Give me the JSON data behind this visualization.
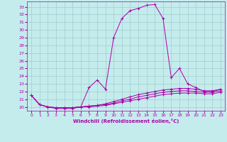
{
  "xlabel": "Windchill (Refroidissement éolien,°C)",
  "ylabel": "",
  "background_color": "#c5eced",
  "line_color": "#aa00aa",
  "grid_color": "#a0cccc",
  "xlim": [
    -0.5,
    23.5
  ],
  "ylim": [
    19.5,
    33.7
  ],
  "yticks": [
    20,
    21,
    22,
    23,
    24,
    25,
    26,
    27,
    28,
    29,
    30,
    31,
    32,
    33
  ],
  "xticks": [
    0,
    1,
    2,
    3,
    4,
    5,
    6,
    7,
    8,
    9,
    10,
    11,
    12,
    13,
    14,
    15,
    16,
    17,
    18,
    19,
    20,
    21,
    22,
    23
  ],
  "lines": [
    {
      "x": [
        0,
        1,
        2,
        3,
        4,
        5,
        6,
        7,
        8,
        9,
        10,
        11,
        12,
        13,
        14,
        15,
        16,
        17,
        18,
        19,
        20,
        21,
        22,
        23
      ],
      "y": [
        21.5,
        20.3,
        20.0,
        19.8,
        19.8,
        19.8,
        20.0,
        22.5,
        23.5,
        22.3,
        29.0,
        31.5,
        32.5,
        32.8,
        33.2,
        33.3,
        31.5,
        23.8,
        25.0,
        23.0,
        22.5,
        22.0,
        22.0,
        22.3
      ]
    },
    {
      "x": [
        0,
        1,
        2,
        3,
        4,
        5,
        6,
        7,
        8,
        9,
        10,
        11,
        12,
        13,
        14,
        15,
        16,
        17,
        18,
        19,
        20,
        21,
        22,
        23
      ],
      "y": [
        21.5,
        20.3,
        20.0,
        19.9,
        19.9,
        19.9,
        20.0,
        20.1,
        20.2,
        20.4,
        20.7,
        21.0,
        21.3,
        21.6,
        21.8,
        22.0,
        22.2,
        22.3,
        22.4,
        22.4,
        22.3,
        22.1,
        22.1,
        22.3
      ]
    },
    {
      "x": [
        0,
        1,
        2,
        3,
        4,
        5,
        6,
        7,
        8,
        9,
        10,
        11,
        12,
        13,
        14,
        15,
        16,
        17,
        18,
        19,
        20,
        21,
        22,
        23
      ],
      "y": [
        21.5,
        20.3,
        20.0,
        19.9,
        19.9,
        19.9,
        20.0,
        20.1,
        20.2,
        20.3,
        20.5,
        20.8,
        21.0,
        21.3,
        21.5,
        21.7,
        21.9,
        22.0,
        22.1,
        22.1,
        22.0,
        21.9,
        21.9,
        22.1
      ]
    },
    {
      "x": [
        0,
        1,
        2,
        3,
        4,
        5,
        6,
        7,
        8,
        9,
        10,
        11,
        12,
        13,
        14,
        15,
        16,
        17,
        18,
        19,
        20,
        21,
        22,
        23
      ],
      "y": [
        21.5,
        20.3,
        20.0,
        19.9,
        19.9,
        19.9,
        20.0,
        20.0,
        20.1,
        20.2,
        20.4,
        20.6,
        20.8,
        21.0,
        21.2,
        21.4,
        21.6,
        21.7,
        21.8,
        21.8,
        21.8,
        21.7,
        21.7,
        21.9
      ]
    }
  ]
}
